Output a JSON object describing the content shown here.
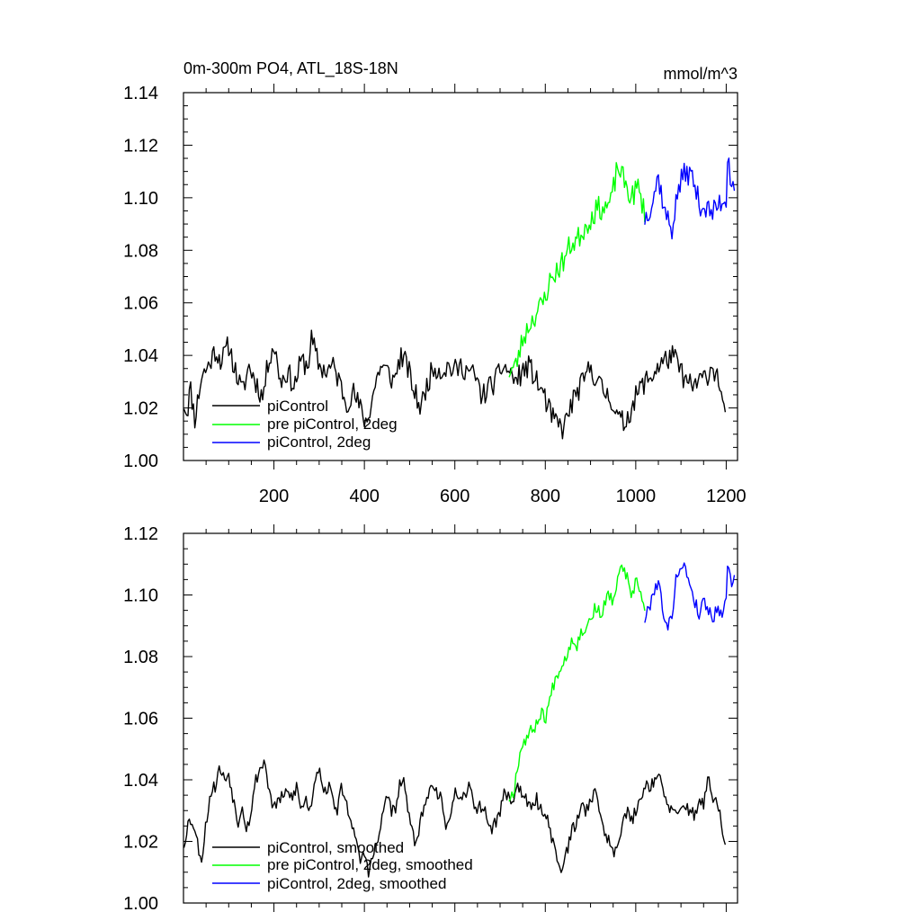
{
  "chart_data": [
    {
      "type": "line",
      "title": "0m-300m PO4, ATL_18S-18N",
      "units": "mmol/m^3",
      "xlim": [
        0,
        1225
      ],
      "ylim": [
        1.0,
        1.14
      ],
      "xticks": [
        200,
        400,
        600,
        800,
        1000,
        1200
      ],
      "yticks": [
        1.0,
        1.02,
        1.04,
        1.06,
        1.08,
        1.1,
        1.12,
        1.14
      ],
      "ytick_labels": [
        "1.00",
        "1.02",
        "1.04",
        "1.06",
        "1.08",
        "1.10",
        "1.12",
        "1.14"
      ],
      "show_x_labels": true,
      "legend_position": "lower-left",
      "series": [
        {
          "name": "piControl",
          "color": "#000000",
          "noise": 0.0045,
          "seed": 11,
          "x": [
            1,
            8,
            15,
            25,
            40,
            55,
            70,
            85,
            100,
            115,
            130,
            145,
            160,
            175,
            190,
            200,
            215,
            230,
            245,
            260,
            275,
            283,
            300,
            315,
            330,
            345,
            360,
            375,
            390,
            405,
            420,
            435,
            450,
            465,
            480,
            495,
            510,
            525,
            540,
            555,
            570,
            585,
            600,
            615,
            630,
            645,
            660,
            675,
            690,
            705,
            720,
            735,
            750,
            765,
            780,
            795,
            810,
            825,
            840,
            855,
            870,
            885,
            900,
            915,
            930,
            945,
            960,
            975,
            990,
            1005,
            1020,
            1035,
            1050,
            1065,
            1080,
            1095,
            1110,
            1125,
            1140,
            1155,
            1170,
            1185,
            1200
          ],
          "y": [
            1.022,
            1.018,
            1.028,
            1.016,
            1.032,
            1.036,
            1.042,
            1.038,
            1.044,
            1.034,
            1.026,
            1.036,
            1.03,
            1.024,
            1.04,
            1.044,
            1.03,
            1.034,
            1.028,
            1.038,
            1.036,
            1.046,
            1.036,
            1.034,
            1.036,
            1.03,
            1.022,
            1.026,
            1.02,
            1.014,
            1.026,
            1.036,
            1.034,
            1.03,
            1.04,
            1.036,
            1.026,
            1.02,
            1.03,
            1.036,
            1.034,
            1.036,
            1.034,
            1.036,
            1.034,
            1.032,
            1.024,
            1.028,
            1.03,
            1.036,
            1.034,
            1.03,
            1.034,
            1.036,
            1.03,
            1.026,
            1.018,
            1.014,
            1.012,
            1.02,
            1.026,
            1.03,
            1.036,
            1.03,
            1.026,
            1.024,
            1.016,
            1.014,
            1.02,
            1.026,
            1.03,
            1.032,
            1.036,
            1.038,
            1.04,
            1.036,
            1.03,
            1.028,
            1.03,
            1.032,
            1.036,
            1.03,
            1.012
          ]
        },
        {
          "name": "pre piControl, 2deg",
          "color": "#00ff00",
          "noise": 0.0045,
          "seed": 23,
          "x": [
            720,
            735,
            750,
            765,
            780,
            795,
            810,
            825,
            840,
            855,
            870,
            885,
            900,
            915,
            930,
            945,
            960,
            975,
            990,
            1005,
            1020
          ],
          "y": [
            1.034,
            1.036,
            1.046,
            1.052,
            1.056,
            1.06,
            1.068,
            1.072,
            1.076,
            1.082,
            1.084,
            1.088,
            1.092,
            1.096,
            1.096,
            1.098,
            1.112,
            1.106,
            1.1,
            1.104,
            1.094
          ]
        },
        {
          "name": "piControl, 2deg",
          "color": "#0000ff",
          "noise": 0.0045,
          "seed": 37,
          "x": [
            1020,
            1035,
            1050,
            1065,
            1080,
            1095,
            1110,
            1125,
            1140,
            1155,
            1170,
            1185,
            1200,
            1205,
            1210,
            1220
          ],
          "y": [
            1.092,
            1.098,
            1.108,
            1.094,
            1.088,
            1.104,
            1.11,
            1.108,
            1.098,
            1.096,
            1.094,
            1.098,
            1.1,
            1.122,
            1.104,
            1.106
          ]
        }
      ]
    },
    {
      "type": "line",
      "title": "",
      "units": "",
      "xlim": [
        0,
        1225
      ],
      "ylim": [
        1.0,
        1.12
      ],
      "xticks": [
        200,
        400,
        600,
        800,
        1000,
        1200
      ],
      "yticks": [
        1.0,
        1.02,
        1.04,
        1.06,
        1.08,
        1.1,
        1.12
      ],
      "ytick_labels": [
        "1.00",
        "1.02",
        "1.04",
        "1.06",
        "1.08",
        "1.10",
        "1.12"
      ],
      "show_x_labels": false,
      "legend_position": "lower-left",
      "series": [
        {
          "name": "piControl, smoothed",
          "color": "#000000",
          "noise": 0.0022,
          "seed": 53,
          "x": [
            1,
            10,
            20,
            30,
            40,
            50,
            60,
            70,
            80,
            90,
            100,
            110,
            120,
            130,
            140,
            150,
            160,
            170,
            180,
            190,
            200,
            210,
            220,
            230,
            240,
            250,
            260,
            270,
            280,
            290,
            300,
            310,
            320,
            330,
            340,
            350,
            360,
            370,
            380,
            390,
            400,
            410,
            420,
            430,
            440,
            450,
            460,
            470,
            480,
            490,
            500,
            510,
            520,
            530,
            540,
            550,
            560,
            570,
            580,
            590,
            600,
            610,
            620,
            630,
            640,
            650,
            660,
            670,
            680,
            690,
            700,
            710,
            720,
            730,
            740,
            750,
            760,
            770,
            780,
            790,
            800,
            810,
            820,
            830,
            840,
            850,
            860,
            870,
            880,
            890,
            900,
            910,
            920,
            930,
            940,
            950,
            960,
            970,
            980,
            990,
            1000,
            1010,
            1020,
            1030,
            1040,
            1050,
            1060,
            1070,
            1080,
            1090,
            1100,
            1110,
            1120,
            1130,
            1140,
            1150,
            1160,
            1170,
            1180,
            1190,
            1200
          ],
          "y": [
            1.019,
            1.026,
            1.027,
            1.02,
            1.014,
            1.026,
            1.036,
            1.038,
            1.044,
            1.04,
            1.042,
            1.034,
            1.026,
            1.032,
            1.024,
            1.03,
            1.04,
            1.044,
            1.046,
            1.036,
            1.03,
            1.034,
            1.034,
            1.036,
            1.034,
            1.038,
            1.03,
            1.034,
            1.03,
            1.04,
            1.045,
            1.036,
            1.038,
            1.034,
            1.03,
            1.038,
            1.032,
            1.028,
            1.02,
            1.014,
            1.016,
            1.01,
            1.016,
            1.02,
            1.028,
            1.036,
            1.03,
            1.03,
            1.04,
            1.038,
            1.026,
            1.02,
            1.024,
            1.03,
            1.034,
            1.04,
            1.036,
            1.034,
            1.022,
            1.03,
            1.036,
            1.032,
            1.034,
            1.038,
            1.034,
            1.03,
            1.032,
            1.028,
            1.024,
            1.026,
            1.03,
            1.036,
            1.034,
            1.034,
            1.038,
            1.036,
            1.032,
            1.03,
            1.034,
            1.03,
            1.03,
            1.024,
            1.018,
            1.012,
            1.012,
            1.018,
            1.024,
            1.026,
            1.032,
            1.03,
            1.034,
            1.036,
            1.03,
            1.024,
            1.02,
            1.016,
            1.02,
            1.026,
            1.03,
            1.026,
            1.03,
            1.034,
            1.038,
            1.038,
            1.04,
            1.042,
            1.036,
            1.032,
            1.03,
            1.028,
            1.03,
            1.032,
            1.03,
            1.028,
            1.034,
            1.032,
            1.04,
            1.034,
            1.032,
            1.026,
            1.016
          ]
        },
        {
          "name": "pre piControl, 2deg, smoothed",
          "color": "#00ff00",
          "noise": 0.0022,
          "seed": 67,
          "x": [
            720,
            730,
            740,
            750,
            760,
            770,
            780,
            790,
            800,
            810,
            820,
            830,
            840,
            850,
            860,
            870,
            880,
            890,
            900,
            910,
            920,
            930,
            940,
            950,
            960,
            970,
            980,
            990,
            1000,
            1010,
            1020
          ],
          "y": [
            1.034,
            1.036,
            1.046,
            1.052,
            1.054,
            1.056,
            1.058,
            1.062,
            1.06,
            1.066,
            1.072,
            1.076,
            1.078,
            1.082,
            1.086,
            1.084,
            1.088,
            1.09,
            1.092,
            1.096,
            1.094,
            1.096,
            1.1,
            1.098,
            1.104,
            1.11,
            1.106,
            1.098,
            1.104,
            1.102,
            1.094
          ]
        },
        {
          "name": "piControl, 2deg, smoothed",
          "color": "#0000ff",
          "noise": 0.0022,
          "seed": 79,
          "x": [
            1020,
            1030,
            1040,
            1050,
            1060,
            1070,
            1080,
            1090,
            1100,
            1110,
            1120,
            1130,
            1140,
            1150,
            1160,
            1170,
            1180,
            1190,
            1200,
            1205,
            1210,
            1220
          ],
          "y": [
            1.092,
            1.096,
            1.102,
            1.104,
            1.096,
            1.088,
            1.094,
            1.106,
            1.11,
            1.108,
            1.104,
            1.098,
            1.094,
            1.098,
            1.096,
            1.092,
            1.096,
            1.094,
            1.1,
            1.112,
            1.104,
            1.106
          ]
        }
      ]
    }
  ]
}
